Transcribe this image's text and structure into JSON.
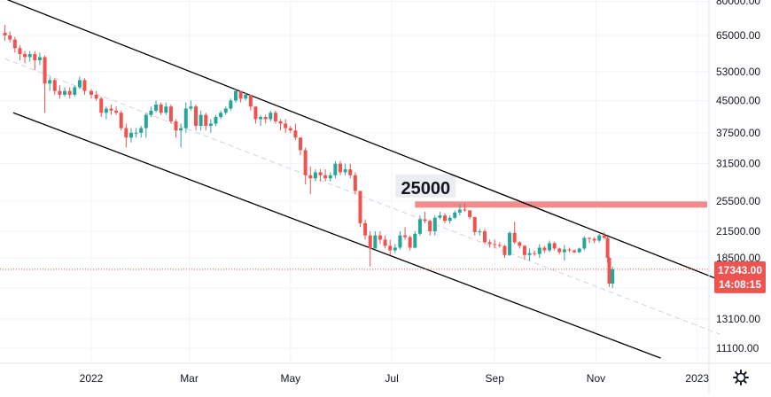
{
  "chart_data": {
    "type": "candlestick",
    "y_scale": "log",
    "yticks": [
      11100,
      13100,
      15600,
      18500,
      21500,
      25500,
      31500,
      37500,
      45000,
      53000,
      65000
    ],
    "ytick_labels": [
      "11100.00",
      "13100.00",
      "15600.00",
      "18500.00",
      "21500.00",
      "25500.00",
      "31500.00",
      "37500.00",
      "45000.00",
      "53000.00",
      "65000.00"
    ],
    "xtick_labels": [
      "2022",
      "Mar",
      "May",
      "Jul",
      "Sep",
      "Nov",
      "2023"
    ],
    "xtick_dates": [
      "2022-01-01",
      "2022-03-01",
      "2022-05-01",
      "2022-07-01",
      "2022-09-01",
      "2022-11-01",
      "2023-01-01"
    ],
    "top_partial_label": "80000.00",
    "last_price": {
      "value": 17343,
      "label": "17343.00",
      "countdown": "14:08:15"
    },
    "horizontal_zone": {
      "value": 25000,
      "label": "25000",
      "start": "2022-07-15",
      "end": "2023-01-15"
    },
    "channel_lines": [
      {
        "name": "upper",
        "points": [
          [
            "2021-11-10",
            80000
          ],
          [
            "2023-01-15",
            16300
          ]
        ]
      },
      {
        "name": "lower",
        "points": [
          [
            "2021-11-15",
            42000
          ],
          [
            "2022-12-10",
            10500
          ]
        ]
      },
      {
        "name": "median",
        "style": "dashed",
        "points": [
          [
            "2021-11-10",
            57000
          ],
          [
            "2023-01-15",
            12000
          ]
        ]
      }
    ],
    "candles": [
      [
        "2021-11-10",
        66000,
        69000,
        63000,
        65000
      ],
      [
        "2021-11-13",
        65000,
        66500,
        62500,
        63500
      ],
      [
        "2021-11-16",
        63500,
        64500,
        59000,
        60500
      ],
      [
        "2021-11-19",
        60500,
        61500,
        56500,
        58500
      ],
      [
        "2021-11-22",
        58500,
        59500,
        55500,
        57500
      ],
      [
        "2021-11-25",
        57500,
        59500,
        56000,
        58500
      ],
      [
        "2021-11-28",
        58500,
        59500,
        53500,
        56500
      ],
      [
        "2021-12-01",
        56500,
        59000,
        55000,
        57500
      ],
      [
        "2021-12-04",
        57500,
        58000,
        42000,
        49500
      ],
      [
        "2021-12-07",
        49500,
        51500,
        47500,
        50500
      ],
      [
        "2021-12-10",
        50500,
        51000,
        46500,
        47500
      ],
      [
        "2021-12-13",
        47500,
        49000,
        45500,
        46500
      ],
      [
        "2021-12-16",
        46500,
        48500,
        46000,
        47500
      ],
      [
        "2021-12-19",
        47500,
        48500,
        45500,
        46500
      ],
      [
        "2021-12-22",
        46500,
        49000,
        46000,
        48500
      ],
      [
        "2021-12-25",
        48500,
        51500,
        48000,
        50500
      ],
      [
        "2021-12-28",
        50500,
        51000,
        46500,
        47500
      ],
      [
        "2022-01-01",
        47500,
        48000,
        45500,
        46500
      ],
      [
        "2022-01-04",
        46500,
        47500,
        45000,
        45500
      ],
      [
        "2022-01-07",
        45500,
        46000,
        41000,
        42000
      ],
      [
        "2022-01-10",
        42000,
        43500,
        40500,
        43000
      ],
      [
        "2022-01-13",
        43000,
        44000,
        41500,
        42500
      ],
      [
        "2022-01-16",
        42500,
        43500,
        41500,
        42000
      ],
      [
        "2022-01-19",
        42000,
        42500,
        38000,
        38500
      ],
      [
        "2022-01-22",
        38500,
        39500,
        34500,
        36500
      ],
      [
        "2022-01-25",
        36500,
        38500,
        35500,
        37500
      ],
      [
        "2022-01-28",
        37500,
        38500,
        36500,
        37500
      ],
      [
        "2022-01-31",
        37500,
        39000,
        36500,
        38500
      ],
      [
        "2022-02-03",
        38500,
        42000,
        36500,
        41500
      ],
      [
        "2022-02-06",
        41500,
        43500,
        41000,
        42500
      ],
      [
        "2022-02-09",
        42500,
        45000,
        42000,
        44000
      ],
      [
        "2022-02-12",
        44000,
        44500,
        41500,
        42000
      ],
      [
        "2022-02-15",
        42000,
        44500,
        41500,
        43500
      ],
      [
        "2022-02-18",
        43500,
        44000,
        39500,
        40000
      ],
      [
        "2022-02-21",
        40000,
        40500,
        36500,
        38000
      ],
      [
        "2022-02-24",
        38000,
        39500,
        34500,
        38500
      ],
      [
        "2022-02-27",
        38500,
        44500,
        37500,
        43000
      ],
      [
        "2022-03-02",
        43000,
        45000,
        42500,
        43500
      ],
      [
        "2022-03-05",
        43500,
        44000,
        38000,
        39000
      ],
      [
        "2022-03-08",
        39000,
        42500,
        38000,
        41500
      ],
      [
        "2022-03-11",
        41500,
        42000,
        38000,
        39000
      ],
      [
        "2022-03-14",
        39000,
        40500,
        37500,
        39500
      ],
      [
        "2022-03-17",
        39500,
        41500,
        39000,
        41000
      ],
      [
        "2022-03-20",
        41000,
        42500,
        40500,
        42000
      ],
      [
        "2022-03-23",
        42000,
        43500,
        41500,
        43000
      ],
      [
        "2022-03-26",
        43000,
        45500,
        42500,
        45000
      ],
      [
        "2022-03-29",
        45000,
        48000,
        44500,
        47500
      ],
      [
        "2022-04-01",
        47500,
        47500,
        44500,
        45500
      ],
      [
        "2022-04-04",
        45500,
        47000,
        45000,
        46500
      ],
      [
        "2022-04-07",
        46500,
        46500,
        42500,
        43500
      ],
      [
        "2022-04-10",
        43500,
        43500,
        39500,
        40500
      ],
      [
        "2022-04-13",
        40500,
        41500,
        39000,
        41000
      ],
      [
        "2022-04-16",
        41000,
        41500,
        39500,
        40500
      ],
      [
        "2022-04-19",
        40500,
        42500,
        40000,
        42000
      ],
      [
        "2022-04-22",
        42000,
        42500,
        39500,
        40000
      ],
      [
        "2022-04-25",
        40000,
        40500,
        38000,
        39500
      ],
      [
        "2022-04-28",
        39500,
        40500,
        37500,
        38500
      ],
      [
        "2022-05-01",
        38500,
        39000,
        37500,
        38000
      ],
      [
        "2022-05-04",
        38000,
        39500,
        36000,
        36500
      ],
      [
        "2022-05-07",
        36500,
        36500,
        33000,
        34000
      ],
      [
        "2022-05-10",
        34000,
        34500,
        28000,
        29500
      ],
      [
        "2022-05-13",
        29500,
        31000,
        26500,
        29000
      ],
      [
        "2022-05-16",
        29000,
        30500,
        28500,
        30000
      ],
      [
        "2022-05-19",
        30000,
        30500,
        28500,
        29500
      ],
      [
        "2022-05-22",
        29500,
        30500,
        28500,
        29000
      ],
      [
        "2022-05-25",
        29000,
        30000,
        28500,
        29500
      ],
      [
        "2022-05-28",
        29500,
        32000,
        29000,
        31500
      ],
      [
        "2022-05-31",
        31500,
        32000,
        29500,
        30000
      ],
      [
        "2022-06-03",
        30000,
        31500,
        29500,
        30500
      ],
      [
        "2022-06-06",
        30500,
        31500,
        29000,
        29500
      ],
      [
        "2022-06-09",
        29500,
        30000,
        26500,
        27000
      ],
      [
        "2022-06-12",
        27000,
        27000,
        22000,
        22500
      ],
      [
        "2022-06-15",
        22500,
        23000,
        20500,
        21000
      ],
      [
        "2022-06-18",
        21000,
        21500,
        17600,
        19500
      ],
      [
        "2022-06-21",
        19500,
        21500,
        19500,
        21000
      ],
      [
        "2022-06-24",
        21000,
        21500,
        20000,
        20500
      ],
      [
        "2022-06-27",
        20500,
        21000,
        19500,
        19800
      ],
      [
        "2022-06-30",
        19800,
        20500,
        18800,
        19300
      ],
      [
        "2022-07-03",
        19300,
        20000,
        19000,
        19600
      ],
      [
        "2022-07-06",
        19600,
        21500,
        19400,
        21000
      ],
      [
        "2022-07-09",
        21000,
        22000,
        20500,
        20800
      ],
      [
        "2022-07-12",
        20800,
        21000,
        19300,
        19600
      ],
      [
        "2022-07-15",
        19600,
        21500,
        19500,
        21200
      ],
      [
        "2022-07-18",
        21200,
        23500,
        21000,
        23000
      ],
      [
        "2022-07-21",
        23000,
        24000,
        22500,
        22800
      ],
      [
        "2022-07-24",
        22800,
        23000,
        21000,
        21500
      ],
      [
        "2022-07-27",
        21500,
        23500,
        21000,
        23200
      ],
      [
        "2022-07-30",
        23200,
        24000,
        23000,
        23500
      ],
      [
        "2022-08-02",
        23500,
        23800,
        22500,
        22800
      ],
      [
        "2022-08-05",
        22800,
        23500,
        22500,
        23200
      ],
      [
        "2022-08-08",
        23200,
        24200,
        23000,
        23900
      ],
      [
        "2022-08-11",
        23900,
        25000,
        23500,
        24300
      ],
      [
        "2022-08-14",
        24300,
        25200,
        24000,
        24200
      ],
      [
        "2022-08-17",
        24200,
        24200,
        23000,
        23300
      ],
      [
        "2022-08-20",
        23300,
        23300,
        21000,
        21400
      ],
      [
        "2022-08-23",
        21400,
        21800,
        21000,
        21500
      ],
      [
        "2022-08-26",
        21500,
        21800,
        20000,
        20200
      ],
      [
        "2022-08-29",
        20200,
        20500,
        19600,
        20000
      ],
      [
        "2022-09-01",
        20000,
        20500,
        19500,
        19900
      ],
      [
        "2022-09-04",
        19900,
        20200,
        19600,
        19800
      ],
      [
        "2022-09-07",
        19800,
        19900,
        18500,
        18800
      ],
      [
        "2022-09-10",
        18800,
        21500,
        18700,
        21300
      ],
      [
        "2022-09-13",
        21300,
        22700,
        20000,
        20200
      ],
      [
        "2022-09-16",
        20200,
        20300,
        19500,
        19800
      ],
      [
        "2022-09-19",
        19800,
        19900,
        18300,
        18800
      ],
      [
        "2022-09-22",
        18800,
        19500,
        18200,
        19000
      ],
      [
        "2022-09-25",
        19000,
        19300,
        18700,
        18900
      ],
      [
        "2022-09-28",
        18900,
        20000,
        18500,
        19600
      ],
      [
        "2022-10-01",
        19600,
        19800,
        19000,
        19300
      ],
      [
        "2022-10-04",
        19300,
        20400,
        19100,
        20100
      ],
      [
        "2022-10-07",
        20100,
        20300,
        19300,
        19500
      ],
      [
        "2022-10-10",
        19500,
        19600,
        18900,
        19100
      ],
      [
        "2022-10-13",
        19100,
        19900,
        18200,
        19400
      ],
      [
        "2022-10-16",
        19400,
        19600,
        19100,
        19300
      ],
      [
        "2022-10-19",
        19300,
        19400,
        19000,
        19100
      ],
      [
        "2022-10-22",
        19100,
        19600,
        19000,
        19500
      ],
      [
        "2022-10-25",
        19500,
        20900,
        19300,
        20700
      ],
      [
        "2022-10-28",
        20700,
        20800,
        20100,
        20600
      ],
      [
        "2022-10-31",
        20600,
        20800,
        20100,
        20400
      ],
      [
        "2022-11-03",
        20400,
        21200,
        20200,
        21000
      ],
      [
        "2022-11-06",
        21000,
        21400,
        20600,
        20700
      ],
      [
        "2022-11-08",
        20700,
        20900,
        18000,
        18500
      ],
      [
        "2022-11-09",
        18500,
        18600,
        15700,
        16000
      ],
      [
        "2022-11-11",
        16000,
        17600,
        15600,
        17343
      ]
    ]
  }
}
